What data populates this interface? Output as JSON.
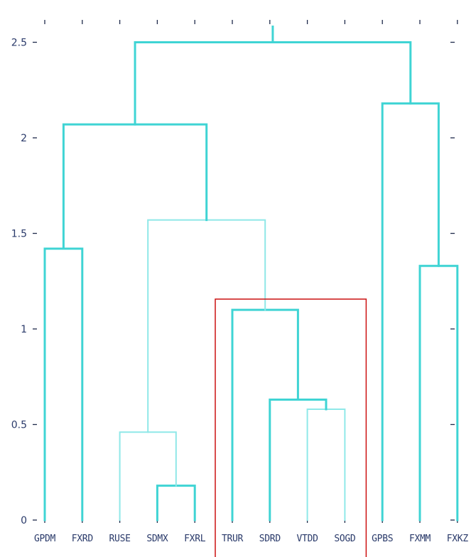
{
  "chart_data": {
    "type": "dendrogram",
    "title": "",
    "xlabel": "",
    "ylabel": "",
    "ylim": [
      0,
      2.6
    ],
    "y_ticks": [
      0,
      0.5,
      1,
      1.5,
      2,
      2.5
    ],
    "y_tick_labels": [
      "0",
      "0.5",
      "1",
      "1.5",
      "2",
      "2.5"
    ],
    "leaves": [
      "GPDM",
      "FXRD",
      "RUSE",
      "SDMX",
      "FXRL",
      "TRUR",
      "SDRD",
      "VTDD",
      "SOGD",
      "GPBS",
      "FXMM",
      "FXKZ"
    ],
    "merges": [
      {
        "children": [
          "SDMX",
          "FXRL"
        ],
        "height": 0.18
      },
      {
        "children": [
          "RUSE",
          "SDMX+FXRL"
        ],
        "height": 0.46
      },
      {
        "children": [
          "VTDD",
          "SOGD"
        ],
        "height": 0.58
      },
      {
        "children": [
          "SDRD",
          "VTDD+SOGD"
        ],
        "height": 0.63
      },
      {
        "children": [
          "TRUR",
          "SDRD+VTDD+SOGD"
        ],
        "height": 1.1
      },
      {
        "children": [
          "FXMM",
          "FXKZ"
        ],
        "height": 1.33
      },
      {
        "children": [
          "GPDM",
          "FXRD"
        ],
        "height": 1.42
      },
      {
        "children": [
          "RUSE..FXRL",
          "TRUR..SOGD"
        ],
        "height": 1.57
      },
      {
        "children": [
          "GPDM+FXRD",
          "RUSE..SOGD"
        ],
        "height": 2.07
      },
      {
        "children": [
          "GPBS",
          "FXMM+FXKZ"
        ],
        "height": 2.18
      },
      {
        "children": [
          "GPDM..SOGD",
          "GPBS..FXKZ"
        ],
        "height": 2.5
      }
    ],
    "colors": {
      "link": "#3fd4d4",
      "link_light": "#8fe8e8",
      "highlight_box": "#cc1111",
      "axis": "#1e2a4a"
    },
    "highlight": {
      "leaves": [
        "TRUR",
        "SDRD",
        "VTDD",
        "SOGD"
      ]
    },
    "grid": false
  }
}
